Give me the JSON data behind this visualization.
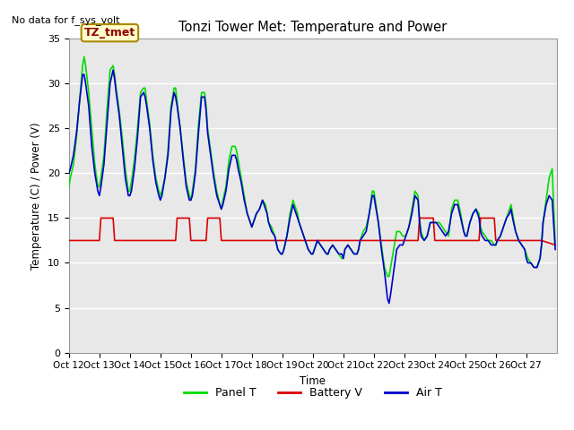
{
  "title": "Tonzi Tower Met: Temperature and Power",
  "subtitle": "No data for f_sys_volt",
  "ylabel": "Temperature (C) / Power (V)",
  "xlabel": "Time",
  "ylim": [
    0,
    35
  ],
  "xtick_labels": [
    "Oct 12",
    "Oct 13",
    "Oct 14",
    "Oct 15",
    "Oct 16",
    "Oct 17",
    "Oct 18",
    "Oct 19",
    "Oct 20",
    "Oct 21",
    "Oct 22",
    "Oct 23",
    "Oct 24",
    "Oct 25",
    "Oct 26",
    "Oct 27"
  ],
  "annotation_label": "TZ_tmet",
  "annotation_box_facecolor": "#ffffcc",
  "annotation_box_edgecolor": "#aa8800",
  "legend_entries": [
    "Panel T",
    "Battery V",
    "Air T"
  ],
  "legend_colors": [
    "#00dd00",
    "#dd0000",
    "#0000cc"
  ],
  "background_color": "#ffffff",
  "plot_bg_color": "#e8e8e8",
  "grid_color": "#ffffff",
  "panel_t_color": "#00dd00",
  "battery_v_color": "#dd0000",
  "air_t_color": "#0000cc",
  "panel_t_x": [
    0,
    0.05,
    0.15,
    0.25,
    0.35,
    0.45,
    0.5,
    0.55,
    0.65,
    0.75,
    0.85,
    0.95,
    1.0,
    1.05,
    1.15,
    1.25,
    1.35,
    1.45,
    1.5,
    1.55,
    1.65,
    1.75,
    1.85,
    1.95,
    2.0,
    2.05,
    2.15,
    2.25,
    2.35,
    2.45,
    2.5,
    2.55,
    2.65,
    2.75,
    2.85,
    2.95,
    3.0,
    3.05,
    3.15,
    3.25,
    3.35,
    3.45,
    3.5,
    3.55,
    3.65,
    3.75,
    3.85,
    3.95,
    4.0,
    4.05,
    4.15,
    4.25,
    4.35,
    4.45,
    4.5,
    4.55,
    4.65,
    4.75,
    4.85,
    4.95,
    5.0,
    5.05,
    5.15,
    5.25,
    5.35,
    5.45,
    5.5,
    5.55,
    5.65,
    5.75,
    5.85,
    5.95,
    6.0,
    6.05,
    6.15,
    6.25,
    6.35,
    6.45,
    6.5,
    6.55,
    6.65,
    6.75,
    6.85,
    6.95,
    7.0,
    7.05,
    7.15,
    7.25,
    7.35,
    7.45,
    7.5,
    7.55,
    7.65,
    7.75,
    7.85,
    7.95,
    8.0,
    8.05,
    8.15,
    8.25,
    8.35,
    8.45,
    8.5,
    8.55,
    8.65,
    8.75,
    8.85,
    8.95,
    9.0,
    9.05,
    9.15,
    9.25,
    9.35,
    9.45,
    9.5,
    9.55,
    9.65,
    9.75,
    9.85,
    9.95,
    10.0,
    10.05,
    10.15,
    10.25,
    10.35,
    10.45,
    10.5,
    10.55,
    10.65,
    10.75,
    10.85,
    10.95,
    11.0,
    11.05,
    11.15,
    11.25,
    11.35,
    11.45,
    11.5,
    11.55,
    11.65,
    11.75,
    11.85,
    11.95,
    12.0,
    12.05,
    12.15,
    12.25,
    12.35,
    12.45,
    12.5,
    12.55,
    12.65,
    12.75,
    12.85,
    12.95,
    13.0,
    13.05,
    13.15,
    13.25,
    13.35,
    13.45,
    13.5,
    13.55,
    13.65,
    13.75,
    13.85,
    13.95,
    14.0,
    14.05,
    14.15,
    14.25,
    14.35,
    14.45,
    14.5,
    14.55,
    14.65,
    14.75,
    14.85,
    14.95,
    15.0,
    15.05,
    15.15,
    15.25,
    15.35,
    15.45,
    15.5,
    15.55,
    15.65,
    15.75,
    15.85,
    15.95
  ],
  "panel_t_y": [
    18.5,
    19.5,
    21.0,
    24.0,
    28.0,
    32.0,
    33.0,
    32.0,
    29.0,
    25.0,
    21.0,
    18.5,
    18.5,
    19.5,
    22.0,
    27.0,
    31.5,
    32.0,
    31.0,
    29.5,
    27.0,
    24.0,
    20.5,
    18.0,
    18.0,
    19.0,
    21.5,
    25.0,
    29.0,
    29.5,
    29.5,
    28.0,
    25.5,
    22.0,
    19.5,
    18.0,
    17.5,
    18.0,
    19.5,
    22.5,
    27.5,
    29.5,
    29.5,
    28.0,
    25.0,
    22.0,
    19.0,
    17.5,
    17.0,
    18.0,
    20.5,
    25.5,
    29.0,
    29.0,
    27.5,
    25.0,
    22.5,
    20.0,
    18.0,
    16.5,
    16.0,
    17.0,
    18.5,
    21.5,
    23.0,
    23.0,
    22.5,
    21.5,
    19.5,
    17.5,
    15.5,
    14.5,
    14.0,
    14.5,
    15.5,
    16.0,
    17.0,
    16.5,
    15.5,
    14.5,
    14.0,
    13.0,
    11.5,
    11.0,
    11.0,
    11.5,
    13.0,
    15.5,
    17.0,
    16.0,
    15.5,
    14.5,
    13.5,
    12.5,
    11.5,
    11.0,
    11.0,
    11.5,
    12.5,
    12.0,
    11.5,
    11.0,
    11.0,
    11.5,
    12.0,
    11.5,
    11.0,
    10.5,
    10.5,
    11.5,
    12.0,
    11.5,
    11.0,
    11.0,
    11.5,
    12.5,
    13.5,
    14.0,
    15.5,
    18.0,
    18.0,
    17.0,
    14.5,
    12.0,
    9.5,
    8.5,
    8.5,
    9.5,
    11.5,
    13.5,
    13.5,
    13.0,
    13.0,
    13.0,
    14.0,
    16.0,
    18.0,
    17.5,
    15.0,
    13.5,
    12.5,
    13.0,
    14.5,
    14.5,
    14.5,
    14.5,
    14.5,
    14.0,
    13.5,
    13.0,
    14.5,
    16.0,
    17.0,
    17.0,
    15.5,
    13.5,
    13.0,
    13.0,
    14.5,
    15.5,
    16.0,
    15.5,
    14.0,
    13.5,
    13.0,
    12.5,
    12.5,
    12.0,
    12.0,
    12.5,
    13.0,
    14.0,
    15.0,
    16.0,
    16.5,
    15.5,
    13.5,
    12.5,
    12.0,
    11.5,
    11.0,
    10.5,
    10.0,
    9.5,
    9.5,
    10.5,
    12.0,
    14.5,
    17.0,
    19.5,
    20.5,
    12.0
  ],
  "battery_v_x": [
    0,
    0.5,
    1.0,
    1.05,
    1.45,
    1.5,
    2.0,
    2.5,
    3.0,
    3.5,
    3.55,
    3.95,
    4.0,
    4.5,
    4.55,
    4.95,
    5.0,
    5.5,
    6.0,
    6.5,
    7.0,
    7.5,
    8.0,
    8.5,
    9.0,
    9.5,
    10.0,
    10.5,
    11.0,
    11.45,
    11.5,
    11.95,
    12.0,
    12.5,
    13.0,
    13.45,
    13.5,
    13.95,
    14.0,
    14.5,
    15.0,
    15.5,
    15.95
  ],
  "battery_v_y": [
    12.5,
    12.5,
    12.5,
    15.0,
    15.0,
    12.5,
    12.5,
    12.5,
    12.5,
    12.5,
    15.0,
    15.0,
    12.5,
    12.5,
    15.0,
    15.0,
    12.5,
    12.5,
    12.5,
    12.5,
    12.5,
    12.5,
    12.5,
    12.5,
    12.5,
    12.5,
    12.5,
    12.5,
    12.5,
    12.5,
    15.0,
    15.0,
    12.5,
    12.5,
    12.5,
    12.5,
    15.0,
    15.0,
    12.5,
    12.5,
    12.5,
    12.5,
    12.0
  ],
  "air_t_x": [
    0,
    0.05,
    0.15,
    0.25,
    0.35,
    0.45,
    0.5,
    0.55,
    0.65,
    0.75,
    0.85,
    0.95,
    1.0,
    1.05,
    1.15,
    1.25,
    1.35,
    1.45,
    1.5,
    1.55,
    1.65,
    1.75,
    1.85,
    1.95,
    2.0,
    2.05,
    2.15,
    2.25,
    2.35,
    2.45,
    2.5,
    2.55,
    2.65,
    2.75,
    2.85,
    2.95,
    3.0,
    3.05,
    3.15,
    3.25,
    3.35,
    3.45,
    3.5,
    3.55,
    3.65,
    3.75,
    3.85,
    3.95,
    4.0,
    4.05,
    4.15,
    4.25,
    4.35,
    4.45,
    4.5,
    4.55,
    4.65,
    4.75,
    4.85,
    4.95,
    5.0,
    5.05,
    5.15,
    5.25,
    5.35,
    5.45,
    5.5,
    5.55,
    5.65,
    5.75,
    5.85,
    5.95,
    6.0,
    6.05,
    6.15,
    6.25,
    6.35,
    6.45,
    6.5,
    6.55,
    6.65,
    6.75,
    6.85,
    6.95,
    7.0,
    7.05,
    7.15,
    7.25,
    7.35,
    7.45,
    7.5,
    7.55,
    7.65,
    7.75,
    7.85,
    7.95,
    8.0,
    8.05,
    8.15,
    8.25,
    8.35,
    8.45,
    8.5,
    8.55,
    8.65,
    8.75,
    8.85,
    8.95,
    9.0,
    9.05,
    9.15,
    9.25,
    9.35,
    9.45,
    9.5,
    9.55,
    9.65,
    9.75,
    9.85,
    9.95,
    10.0,
    10.05,
    10.15,
    10.25,
    10.35,
    10.45,
    10.5,
    10.55,
    10.65,
    10.75,
    10.85,
    10.95,
    11.0,
    11.05,
    11.15,
    11.25,
    11.35,
    11.45,
    11.5,
    11.55,
    11.65,
    11.75,
    11.85,
    11.95,
    12.0,
    12.05,
    12.15,
    12.25,
    12.35,
    12.45,
    12.5,
    12.55,
    12.65,
    12.75,
    12.85,
    12.95,
    13.0,
    13.05,
    13.15,
    13.25,
    13.35,
    13.45,
    13.5,
    13.55,
    13.65,
    13.75,
    13.85,
    13.95,
    14.0,
    14.05,
    14.15,
    14.25,
    14.35,
    14.45,
    14.5,
    14.55,
    14.65,
    14.75,
    14.85,
    14.95,
    15.0,
    15.05,
    15.15,
    15.25,
    15.35,
    15.45,
    15.5,
    15.55,
    15.65,
    15.75,
    15.85,
    15.95
  ],
  "air_t_y": [
    20.0,
    20.5,
    22.0,
    24.5,
    28.0,
    31.0,
    31.0,
    30.0,
    27.5,
    23.0,
    20.0,
    18.0,
    17.5,
    18.5,
    21.0,
    25.5,
    30.0,
    31.5,
    30.5,
    29.0,
    26.5,
    23.0,
    19.5,
    17.5,
    17.5,
    18.0,
    20.5,
    24.0,
    28.5,
    29.0,
    28.5,
    27.5,
    25.0,
    21.5,
    19.0,
    17.5,
    17.0,
    17.5,
    19.5,
    22.0,
    27.0,
    29.0,
    28.5,
    27.5,
    25.0,
    21.5,
    18.5,
    17.0,
    17.0,
    17.5,
    20.0,
    24.5,
    28.5,
    28.5,
    27.0,
    24.5,
    22.0,
    19.5,
    17.5,
    16.5,
    16.0,
    16.5,
    18.0,
    20.5,
    22.0,
    22.0,
    21.5,
    20.5,
    19.0,
    17.0,
    15.5,
    14.5,
    14.0,
    14.5,
    15.5,
    16.0,
    17.0,
    16.0,
    15.5,
    14.5,
    13.5,
    13.0,
    11.5,
    11.0,
    11.0,
    11.5,
    13.0,
    15.0,
    16.5,
    15.5,
    15.0,
    14.5,
    13.5,
    12.5,
    11.5,
    11.0,
    11.0,
    11.5,
    12.5,
    12.0,
    11.5,
    11.0,
    11.0,
    11.5,
    12.0,
    11.5,
    11.0,
    11.0,
    10.5,
    11.5,
    12.0,
    11.5,
    11.0,
    11.0,
    11.5,
    12.5,
    13.0,
    13.5,
    15.5,
    17.5,
    17.5,
    16.5,
    14.5,
    11.5,
    9.0,
    6.0,
    5.5,
    6.5,
    9.0,
    11.5,
    12.0,
    12.0,
    12.5,
    13.0,
    14.0,
    15.5,
    17.5,
    17.0,
    14.5,
    13.0,
    12.5,
    13.0,
    14.5,
    14.5,
    14.5,
    14.5,
    14.0,
    13.5,
    13.0,
    13.5,
    14.5,
    15.5,
    16.5,
    16.5,
    15.0,
    13.5,
    13.0,
    13.0,
    14.5,
    15.5,
    16.0,
    15.0,
    13.5,
    13.0,
    12.5,
    12.5,
    12.0,
    12.0,
    12.0,
    12.5,
    13.0,
    14.0,
    15.0,
    15.5,
    16.0,
    15.0,
    13.5,
    12.5,
    12.0,
    11.5,
    10.5,
    10.0,
    10.0,
    9.5,
    9.5,
    10.5,
    12.0,
    14.5,
    16.5,
    17.5,
    17.0,
    11.5
  ]
}
